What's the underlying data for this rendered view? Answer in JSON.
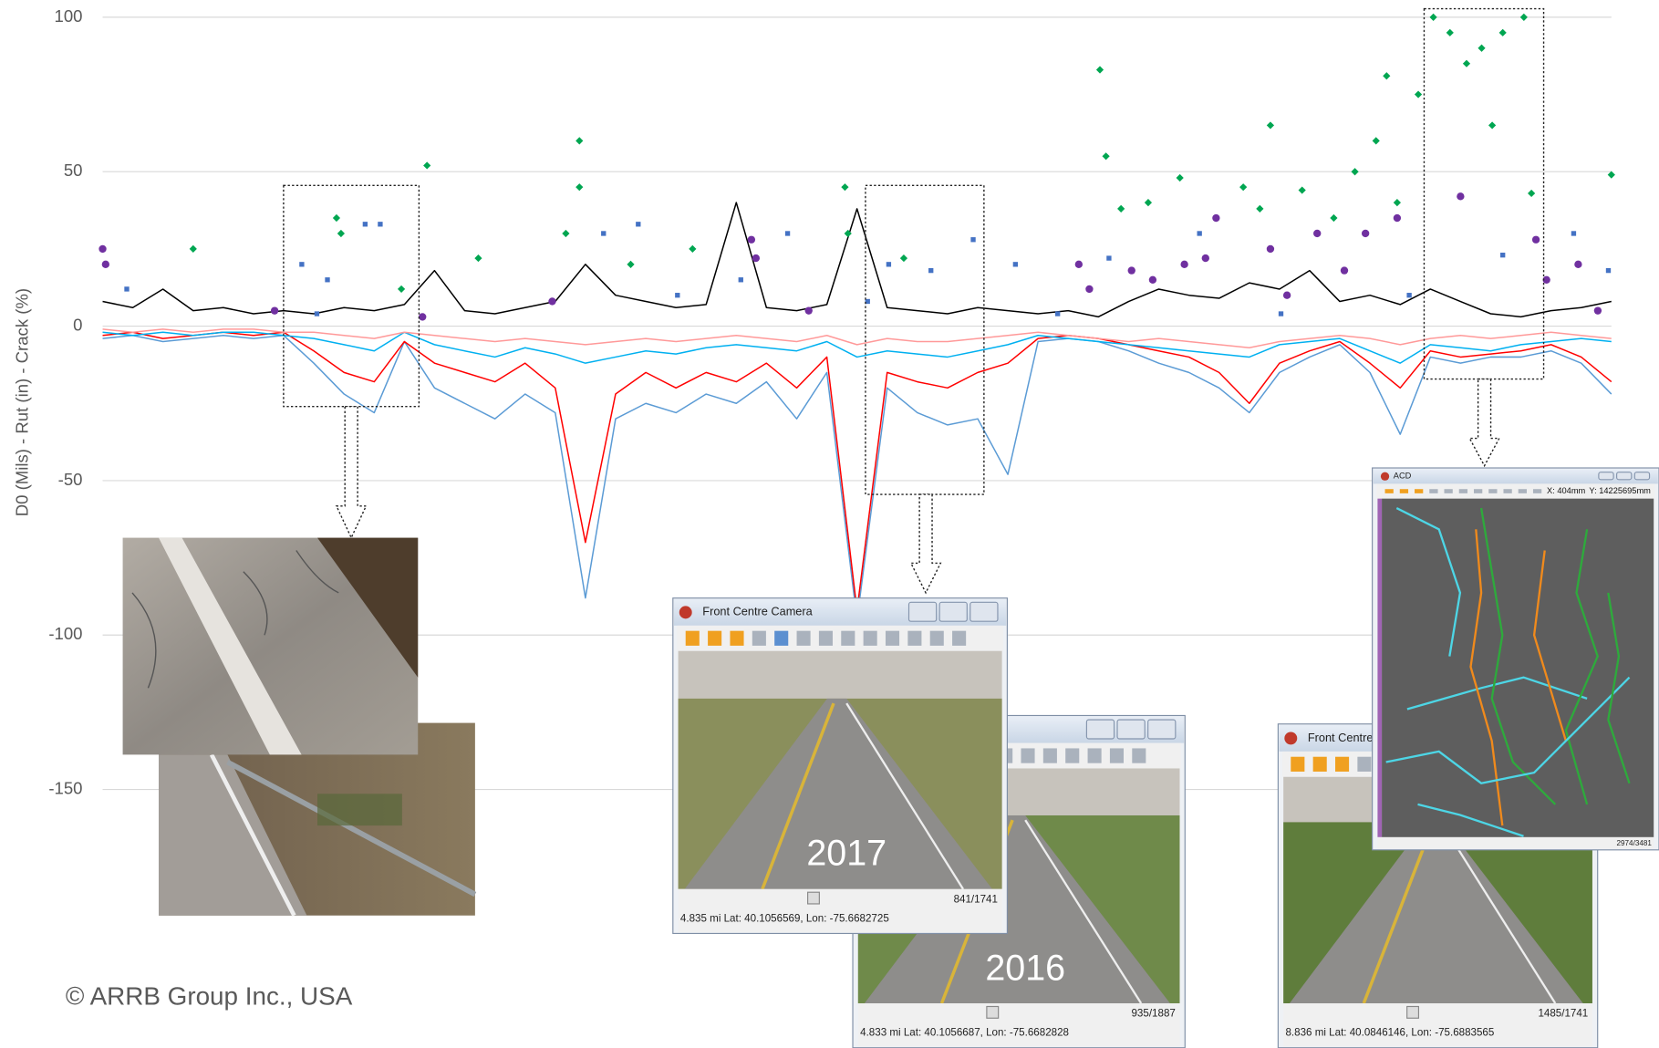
{
  "chart_data": {
    "type": "line",
    "y_label": "D0 (Mils) - Rut (in) - Crack (%)",
    "ylim": [
      -233.6,
      105.5
    ],
    "yticks": [
      100,
      50,
      0,
      -50,
      -100,
      -150
    ],
    "grid": true,
    "xlim": [
      0,
      100
    ],
    "x": [
      0,
      2,
      4,
      6,
      8,
      10,
      12,
      14,
      16,
      18,
      20,
      22,
      24,
      26,
      28,
      30,
      32,
      34,
      36,
      38,
      40,
      42,
      44,
      46,
      48,
      50,
      52,
      54,
      56,
      58,
      60,
      62,
      64,
      66,
      68,
      70,
      72,
      74,
      76,
      78,
      80,
      82,
      84,
      86,
      88,
      90,
      92,
      94,
      96,
      98,
      100
    ],
    "series": [
      {
        "type": "line",
        "color": "#5b9bd5",
        "values": [
          -4,
          -3,
          -5,
          -4,
          -3,
          -4,
          -3,
          -12,
          -22,
          -28,
          -5,
          -20,
          -25,
          -30,
          -22,
          -28,
          -88,
          -30,
          -25,
          -28,
          -22,
          -25,
          -18,
          -30,
          -15,
          -95,
          -20,
          -28,
          -32,
          -30,
          -48,
          -5,
          -4,
          -5,
          -8,
          -12,
          -15,
          -20,
          -28,
          -15,
          -10,
          -6,
          -15,
          -35,
          -10,
          -12,
          -10,
          -10,
          -8,
          -12,
          -22
        ]
      },
      {
        "type": "line",
        "color": "#ff0000",
        "values": [
          -3,
          -2,
          -4,
          -3,
          -2,
          -3,
          -2,
          -8,
          -15,
          -18,
          -5,
          -12,
          -15,
          -18,
          -12,
          -20,
          -70,
          -22,
          -15,
          -20,
          -15,
          -18,
          -12,
          -20,
          -10,
          -92,
          -15,
          -18,
          -20,
          -15,
          -12,
          -4,
          -3,
          -4,
          -6,
          -8,
          -10,
          -15,
          -25,
          -12,
          -8,
          -5,
          -12,
          -20,
          -8,
          -10,
          -9,
          -8,
          -6,
          -10,
          -18
        ]
      },
      {
        "type": "line",
        "color": "#00b0f0",
        "values": [
          -2,
          -3,
          -2,
          -3,
          -2,
          -2,
          -3,
          -4,
          -6,
          -8,
          -2,
          -6,
          -8,
          -10,
          -7,
          -9,
          -12,
          -10,
          -8,
          -9,
          -7,
          -6,
          -7,
          -8,
          -5,
          -10,
          -8,
          -9,
          -10,
          -8,
          -6,
          -3,
          -4,
          -5,
          -6,
          -7,
          -8,
          -9,
          -10,
          -6,
          -5,
          -4,
          -8,
          -12,
          -6,
          -7,
          -8,
          -6,
          -5,
          -4,
          -5
        ]
      },
      {
        "type": "line",
        "color": "#ff9999",
        "values": [
          -1,
          -2,
          -1,
          -2,
          -1,
          -1,
          -2,
          -2,
          -3,
          -4,
          -2,
          -3,
          -4,
          -5,
          -4,
          -5,
          -6,
          -5,
          -4,
          -5,
          -4,
          -3,
          -4,
          -5,
          -3,
          -6,
          -4,
          -5,
          -5,
          -4,
          -3,
          -2,
          -3,
          -4,
          -5,
          -4,
          -5,
          -6,
          -7,
          -5,
          -4,
          -3,
          -4,
          -6,
          -4,
          -3,
          -4,
          -3,
          -2,
          -3,
          -4
        ]
      },
      {
        "type": "line",
        "color": "#000000",
        "values": [
          8,
          6,
          12,
          5,
          6,
          4,
          5,
          4,
          6,
          5,
          7,
          18,
          5,
          4,
          6,
          8,
          20,
          10,
          8,
          6,
          7,
          40,
          6,
          5,
          7,
          38,
          6,
          5,
          4,
          6,
          5,
          4,
          5,
          3,
          8,
          12,
          10,
          9,
          14,
          12,
          18,
          8,
          10,
          7,
          12,
          8,
          4,
          3,
          5,
          6,
          8
        ]
      },
      {
        "type": "scatter",
        "marker": "circle",
        "color": "#7030a0",
        "x": [
          0,
          0.2,
          11.4,
          21.2,
          29.8,
          43.0,
          43.3,
          46.8,
          64.7,
          65.4,
          68.2,
          69.6,
          71.7,
          73.1,
          73.8,
          77.4,
          78.5,
          80.5,
          82.3,
          83.7,
          85.8,
          90.0,
          95.0,
          95.7,
          97.8,
          99.1
        ],
        "values": [
          25,
          20,
          5,
          3,
          8,
          28,
          22,
          5,
          20,
          12,
          18,
          15,
          20,
          22,
          35,
          25,
          10,
          30,
          18,
          30,
          35,
          42,
          28,
          15,
          20,
          5
        ]
      },
      {
        "type": "scatter",
        "marker": "square",
        "color": "#4472c4",
        "x": [
          1.6,
          13.2,
          14.9,
          17.4,
          18.4,
          14.2,
          33.2,
          35.5,
          38.1,
          42.3,
          45.4,
          50.7,
          52.1,
          54.9,
          57.7,
          60.5,
          63.3,
          66.7,
          72.7,
          78.1,
          86.6,
          92.8,
          97.5,
          99.8
        ],
        "values": [
          12,
          20,
          15,
          33,
          33,
          4,
          30,
          33,
          10,
          15,
          30,
          8,
          20,
          18,
          28,
          20,
          4,
          22,
          30,
          4,
          10,
          23,
          30,
          18
        ]
      },
      {
        "type": "scatter",
        "marker": "diamond",
        "color": "#00a651",
        "x": [
          6.0,
          15.5,
          15.8,
          19.8,
          21.5,
          24.9,
          31.6,
          31.6,
          30.7,
          35.0,
          39.1,
          49.2,
          49.4,
          53.1,
          66.1,
          66.5,
          67.5,
          69.3,
          71.4,
          75.6,
          76.7,
          77.4,
          79.5,
          81.6,
          83.0,
          84.4,
          85.1,
          85.8,
          87.2,
          88.2,
          89.3,
          90.4,
          91.4,
          92.1,
          92.8,
          94.2,
          94.7,
          100
        ],
        "values": [
          25,
          35,
          30,
          12,
          52,
          22,
          60,
          45,
          30,
          20,
          25,
          45,
          30,
          22,
          83,
          55,
          38,
          40,
          48,
          45,
          38,
          65,
          44,
          35,
          50,
          60,
          81,
          40,
          75,
          100,
          95,
          85,
          90,
          65,
          95,
          100,
          43,
          49
        ]
      }
    ],
    "annotations": [
      "© ARRB Group Inc., USA"
    ]
  },
  "windows": [
    {
      "title": "Front Centre Camera",
      "year": "2017",
      "status": "4.835 mi Lat: 40.1056569, Lon: -75.6682725",
      "frame": "841/1741"
    },
    {
      "year": "2016",
      "status": "4.833 mi Lat: 40.1056687, Lon: -75.6682828",
      "frame": "935/1887"
    },
    {
      "title": "Front Centre C",
      "status": "8.836 mi Lat: 40.0846146, Lon: -75.6883565",
      "frame": "1485/1741"
    },
    {
      "title": "ACD",
      "x_readout": "X: 404mm",
      "y_readout": "Y: 14225695mm",
      "frame": "2974/3481"
    }
  ]
}
